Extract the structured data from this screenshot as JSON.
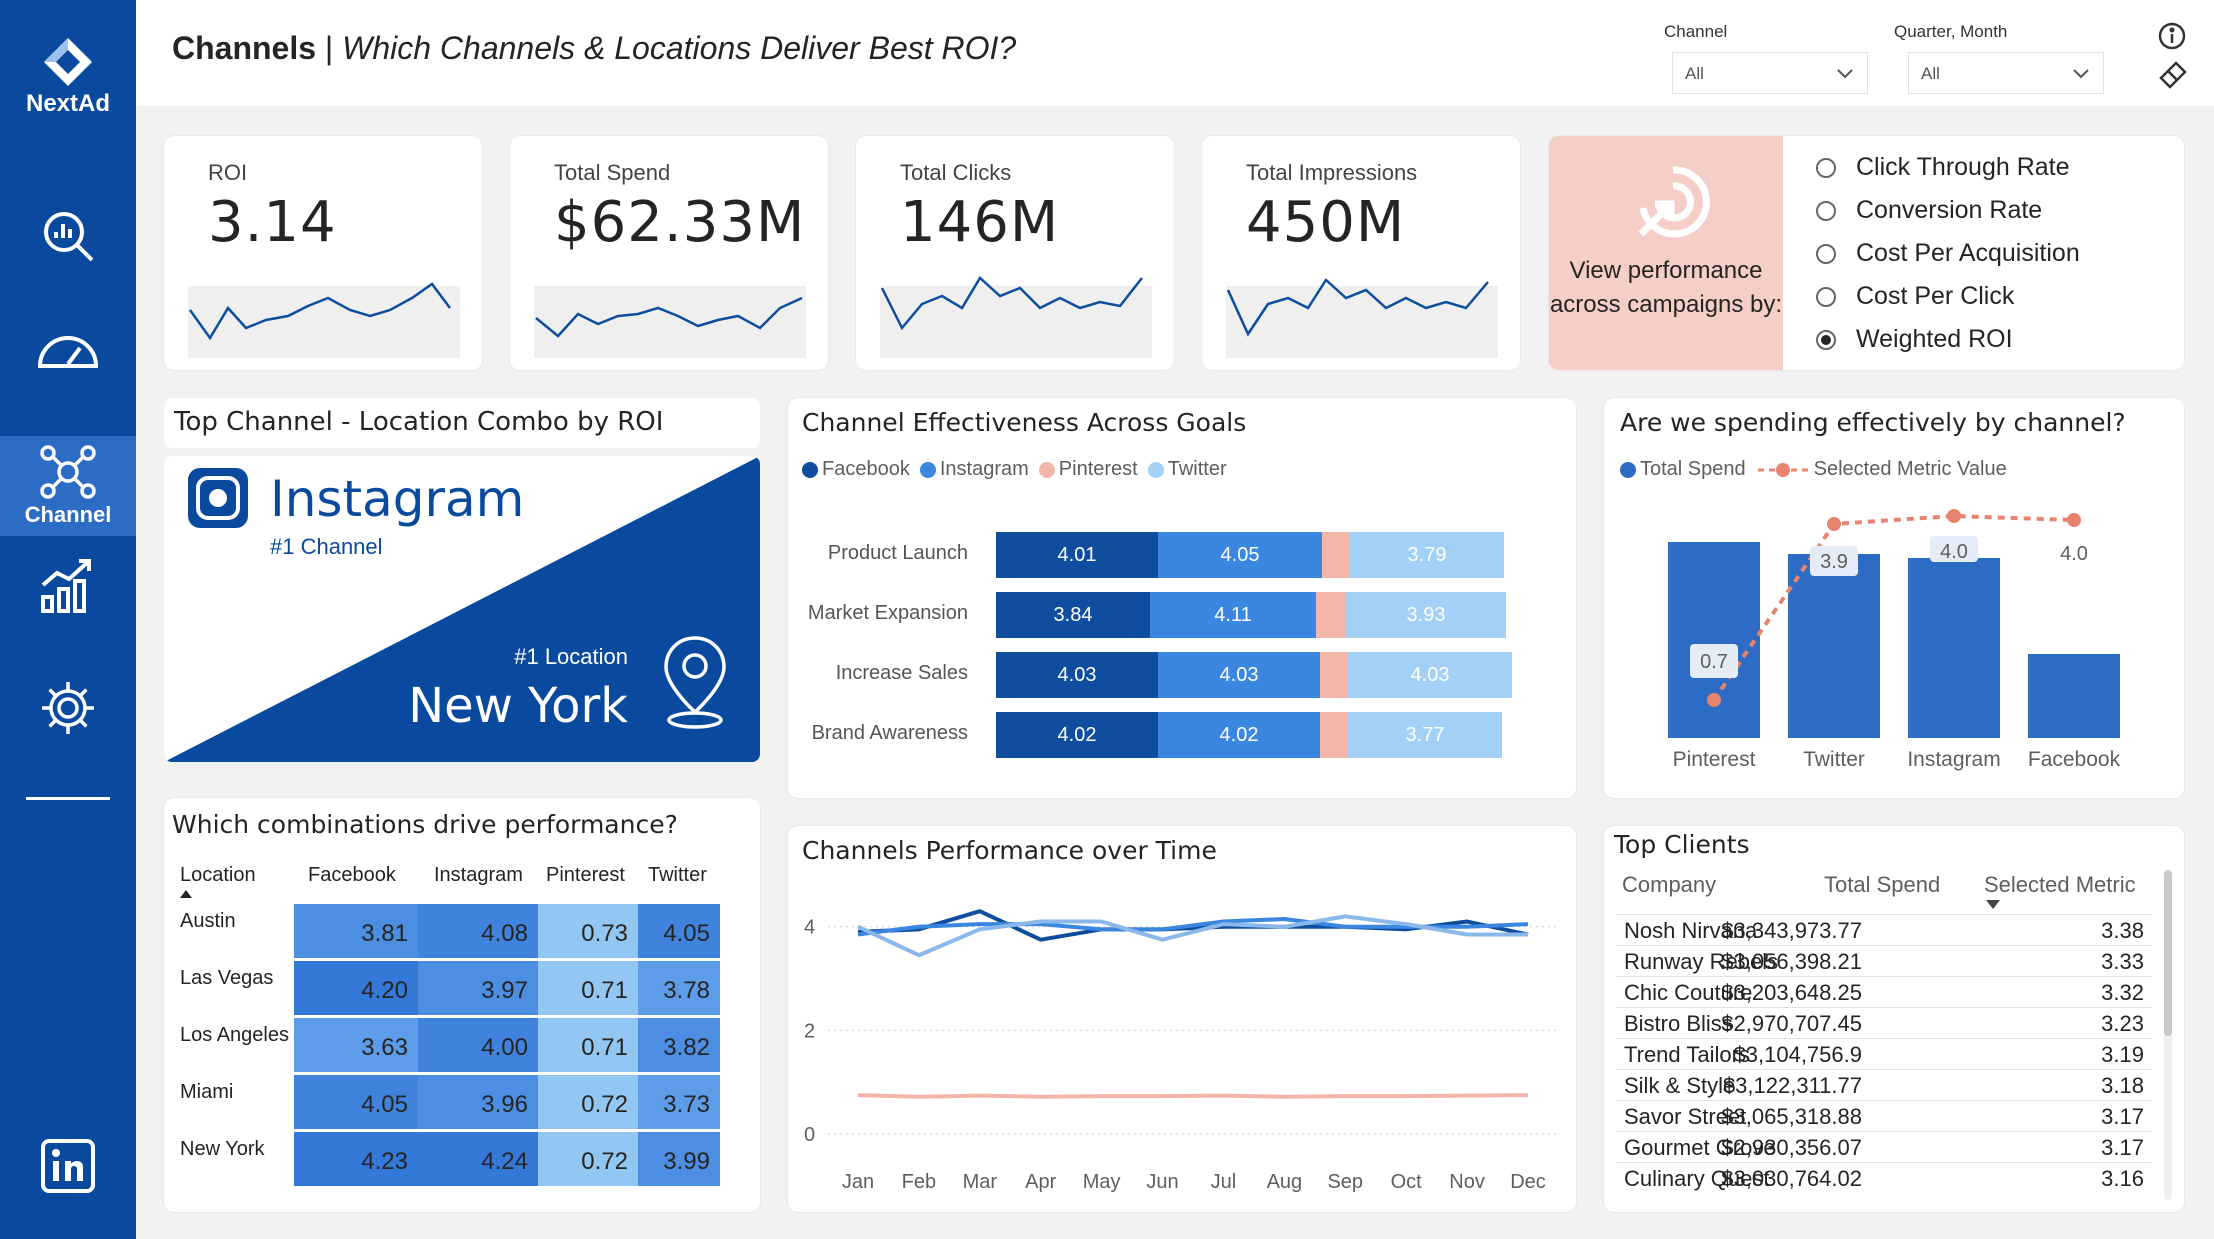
{
  "app": {
    "brand": "NextAd"
  },
  "sidebar": {
    "items": [
      {
        "name": "analytics",
        "icon": "search-chart-icon",
        "label": ""
      },
      {
        "name": "dashboard",
        "icon": "gauge-icon",
        "label": ""
      },
      {
        "name": "channel",
        "icon": "network-icon",
        "label": "Channel",
        "active": true
      },
      {
        "name": "growth",
        "icon": "growth-chart-icon",
        "label": ""
      },
      {
        "name": "settings",
        "icon": "gear-icon",
        "label": ""
      }
    ],
    "footer_icon": "linkedin-icon"
  },
  "header": {
    "title_bold": "Channels",
    "title_sep": " | ",
    "title_italic": "Which Channels & Locations Deliver Best ROI?",
    "channel_label": "Channel",
    "channel_value": "All",
    "period_label": "Quarter, Month",
    "period_value": "All"
  },
  "kpis": [
    {
      "label": "ROI",
      "value": "3.14"
    },
    {
      "label": "Total Spend",
      "value": "$62.33M"
    },
    {
      "label": "Total Clicks",
      "value": "146M"
    },
    {
      "label": "Total Impressions",
      "value": "450M"
    }
  ],
  "view_performance": {
    "text": "View performance across campaigns by:",
    "options": [
      "Click Through Rate",
      "Conversion Rate",
      "Cost Per Acquisition",
      "Cost Per Click",
      "Weighted ROI"
    ],
    "selected": "Weighted ROI"
  },
  "top_combo": {
    "title": "Top Channel - Location Combo by ROI",
    "channel": "Instagram",
    "channel_sub": "#1 Channel",
    "location_sub": "#1 Location",
    "location": "New York"
  },
  "effectiveness": {
    "title": "Channel Effectiveness Across Goals",
    "legend": [
      {
        "name": "Facebook",
        "color": "#0f4d9e"
      },
      {
        "name": "Instagram",
        "color": "#3a86e0"
      },
      {
        "name": "Pinterest",
        "color": "#f2b6a8"
      },
      {
        "name": "Twitter",
        "color": "#a3d0f7"
      }
    ],
    "rows": [
      {
        "goal": "Product Launch",
        "values": [
          "4.01",
          "4.05",
          "",
          "3.79"
        ]
      },
      {
        "goal": "Market Expansion",
        "values": [
          "3.84",
          "4.11",
          "",
          "3.93"
        ]
      },
      {
        "goal": "Increase Sales",
        "values": [
          "4.03",
          "4.03",
          "",
          "4.03"
        ]
      },
      {
        "goal": "Brand Awareness",
        "values": [
          "4.02",
          "4.02",
          "",
          "3.77"
        ]
      }
    ]
  },
  "spending": {
    "title": "Are we spending effectively by channel?",
    "legend_bar": "Total Spend",
    "legend_line": "Selected Metric Value",
    "categories": [
      "Pinterest",
      "Twitter",
      "Instagram",
      "Facebook"
    ],
    "metric_labels": [
      "0.7",
      "3.9",
      "4.0",
      "4.0"
    ]
  },
  "heatmap": {
    "title": "Which combinations drive performance?",
    "col_location": "Location",
    "columns": [
      "Facebook",
      "Instagram",
      "Pinterest",
      "Twitter"
    ],
    "rows": [
      {
        "location": "Austin",
        "values": [
          "3.81",
          "4.08",
          "0.73",
          "4.05"
        ]
      },
      {
        "location": "Las Vegas",
        "values": [
          "4.20",
          "3.97",
          "0.71",
          "3.78"
        ]
      },
      {
        "location": "Los Angeles",
        "values": [
          "3.63",
          "4.00",
          "0.71",
          "3.82"
        ]
      },
      {
        "location": "Miami",
        "values": [
          "4.05",
          "3.96",
          "0.72",
          "3.73"
        ]
      },
      {
        "location": "New York",
        "values": [
          "4.23",
          "4.24",
          "0.72",
          "3.99"
        ]
      }
    ]
  },
  "chart_data": {
    "type": "line",
    "title": "Channels Performance over Time",
    "x": [
      "Jan",
      "Feb",
      "Mar",
      "Apr",
      "May",
      "Jun",
      "Jul",
      "Aug",
      "Sep",
      "Oct",
      "Nov",
      "Dec"
    ],
    "ylim": [
      0,
      4.4
    ],
    "yticks": [
      "0",
      "2",
      "4"
    ],
    "series": [
      {
        "color": "#0f4d9e",
        "values": [
          3.9,
          3.95,
          4.3,
          3.75,
          3.95,
          3.95,
          4.0,
          4.0,
          4.0,
          3.95,
          4.1,
          3.85
        ]
      },
      {
        "color": "#3a86e0",
        "values": [
          3.85,
          4.0,
          4.05,
          4.05,
          3.95,
          3.95,
          4.1,
          4.15,
          4.0,
          4.0,
          4.0,
          4.05
        ]
      },
      {
        "color": "#8ab8ea",
        "values": [
          4.0,
          3.45,
          3.95,
          4.1,
          4.1,
          3.75,
          4.05,
          4.0,
          4.2,
          4.05,
          3.85,
          3.85
        ]
      },
      {
        "color": "#f2b6a8",
        "values": [
          0.75,
          0.72,
          0.74,
          0.72,
          0.73,
          0.73,
          0.74,
          0.72,
          0.73,
          0.73,
          0.74,
          0.75
        ]
      }
    ]
  },
  "clients": {
    "title": "Top Clients",
    "columns": [
      "Company",
      "Total Spend",
      "Selected Metric"
    ],
    "rows": [
      [
        "Nosh Nirvana",
        "$3,343,973.77",
        "3.38"
      ],
      [
        "Runway Rebels",
        "$3,056,398.21",
        "3.33"
      ],
      [
        "Chic Couture",
        "$3,203,648.25",
        "3.32"
      ],
      [
        "Bistro Bliss",
        "$2,970,707.45",
        "3.23"
      ],
      [
        "Trend Tailors",
        "$3,104,756.9",
        "3.19"
      ],
      [
        "Silk & Style",
        "$3,122,311.77",
        "3.18"
      ],
      [
        "Savor Street",
        "$3,065,318.88",
        "3.17"
      ],
      [
        "Gourmet Grove",
        "$2,930,356.07",
        "3.17"
      ],
      [
        "Culinary Quest",
        "$3,030,764.02",
        "3.16"
      ]
    ]
  }
}
